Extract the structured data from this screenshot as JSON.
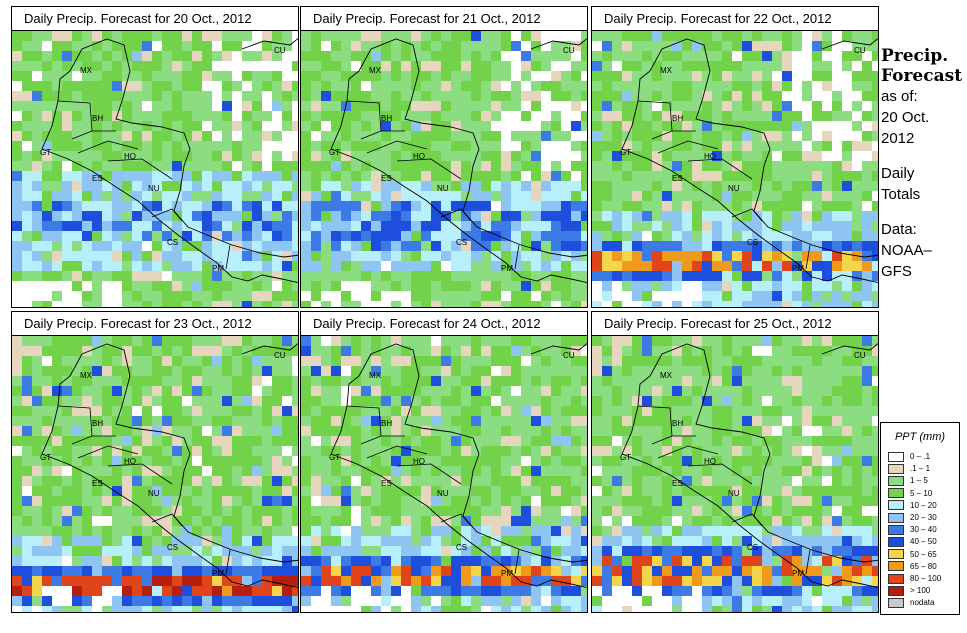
{
  "panels": [
    {
      "title": "Daily Precip. Forecast for  20 Oct., 2012",
      "scenario": 0
    },
    {
      "title": "Daily Precip. Forecast for  21 Oct., 2012",
      "scenario": 1
    },
    {
      "title": "Daily Precip. Forecast for  22 Oct., 2012",
      "scenario": 2
    },
    {
      "title": "Daily Precip. Forecast for  23 Oct., 2012",
      "scenario": 3
    },
    {
      "title": "Daily Precip. Forecast for  24 Oct., 2012",
      "scenario": 4
    },
    {
      "title": "Daily Precip. Forecast for  25 Oct., 2012",
      "scenario": 5
    }
  ],
  "map_labels": [
    "MX",
    "CU",
    "BH",
    "GT",
    "HO",
    "ES",
    "NU",
    "CS",
    "PM"
  ],
  "sidebar": {
    "title_line1": "Precip.",
    "title_line2": "Forecast",
    "asof_line1": "as of:",
    "asof_line2": "20 Oct.",
    "asof_line3": "2012",
    "totals_line1": "Daily",
    "totals_line2": "Totals",
    "data_line1": "Data:",
    "data_line2": "NOAA–",
    "data_line3": "GFS"
  },
  "legend": {
    "title": "PPT (mm)",
    "items": [
      {
        "label": "0 – .1",
        "color": "#ffffff"
      },
      {
        "label": ".1 – 1",
        "color": "#e6d6bd"
      },
      {
        "label": "1 – 5",
        "color": "#8cdc82"
      },
      {
        "label": "5 – 10",
        "color": "#72d34a"
      },
      {
        "label": "10 – 20",
        "color": "#b7f0fa"
      },
      {
        "label": "20 – 30",
        "color": "#8fc5f3"
      },
      {
        "label": "30 – 40",
        "color": "#3c7ae6"
      },
      {
        "label": "40 – 50",
        "color": "#1d4fdc"
      },
      {
        "label": "50 – 65",
        "color": "#f5d54a"
      },
      {
        "label": "65 – 80",
        "color": "#f09a1c"
      },
      {
        "label": "80 – 100",
        "color": "#e0441a"
      },
      {
        "label": "> 100",
        "color": "#b51f10"
      },
      {
        "label": "nodata",
        "color": "#c8c8c8"
      }
    ]
  }
}
